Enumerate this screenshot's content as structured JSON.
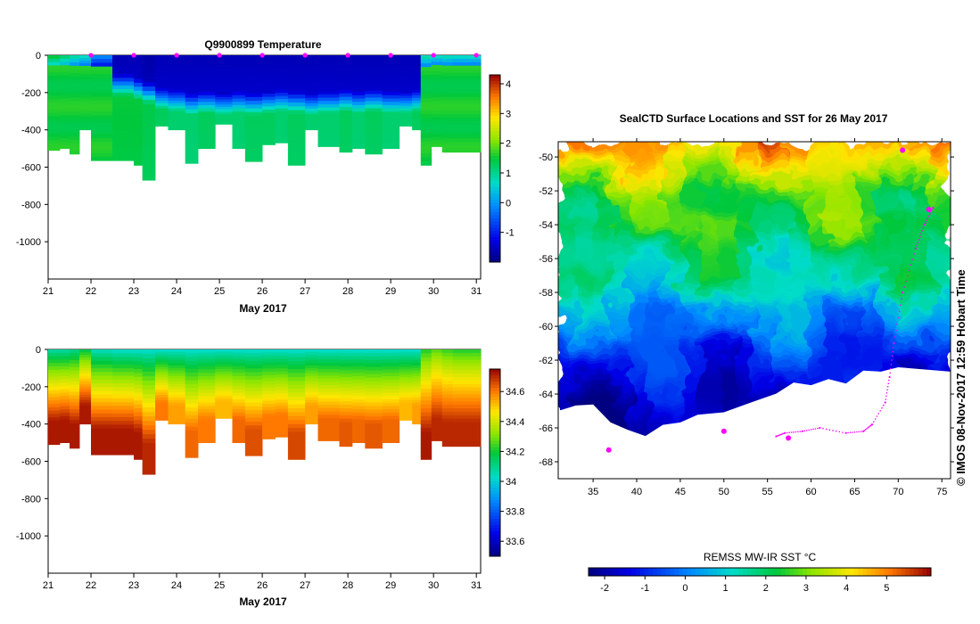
{
  "chart_data": [
    {
      "type": "heatmap",
      "id": "temperature",
      "title": "Q9900899  Temperature",
      "xlabel": "May 2017",
      "x_ticks": [
        "21",
        "22",
        "23",
        "24",
        "25",
        "26",
        "27",
        "28",
        "29",
        "30",
        "31"
      ],
      "xlim": [
        21,
        31.1
      ],
      "ylim": [
        -1200,
        0
      ],
      "y_ticks": [
        0,
        -200,
        -400,
        -600,
        -800,
        -1000
      ],
      "y_tick_labels": [
        "0",
        "-200",
        "-400",
        "-600",
        "-800",
        "-1000"
      ],
      "profile_markers_x": [
        22,
        23,
        24,
        25,
        26,
        27,
        28,
        29,
        30,
        31
      ],
      "colorbar": {
        "min": -2,
        "max": 4.3,
        "ticks": [
          -1,
          0,
          1,
          2,
          3,
          4
        ],
        "tick_labels": [
          "-1",
          "0",
          "1",
          "2",
          "3",
          "4"
        ]
      },
      "profiles": {
        "x_start": [
          21.0,
          21.27,
          21.5,
          21.73,
          22.0,
          22.5,
          23.0,
          23.2,
          23.5,
          23.8,
          24.2,
          24.5,
          24.9,
          25.3,
          25.6,
          26.0,
          26.3,
          26.6,
          27.0,
          27.3,
          27.8,
          28.1,
          28.4,
          28.8,
          29.2,
          29.5,
          29.7,
          29.95,
          30.2,
          30.45
        ],
        "x_end": [
          21.27,
          21.5,
          21.73,
          22.0,
          22.5,
          23.0,
          23.2,
          23.5,
          23.8,
          24.2,
          24.5,
          24.9,
          25.3,
          25.6,
          26.0,
          26.3,
          26.6,
          27.0,
          27.3,
          27.8,
          28.1,
          28.4,
          28.8,
          29.2,
          29.5,
          29.7,
          29.95,
          30.2,
          30.45,
          31.1
        ],
        "max_depth": [
          -510,
          -500,
          -530,
          -400,
          -565,
          -565,
          -590,
          -670,
          -380,
          -400,
          -580,
          -500,
          -370,
          -500,
          -570,
          -480,
          -470,
          -590,
          -400,
          -490,
          -520,
          -500,
          -530,
          -500,
          -380,
          -400,
          -590,
          -490,
          -520,
          -520
        ],
        "surface_value": [
          1.6,
          1.3,
          1.0,
          0.8,
          0.0,
          -1.6,
          -1.6,
          -1.7,
          -1.6,
          -1.6,
          -1.6,
          -1.6,
          -1.6,
          -1.6,
          -1.6,
          -1.6,
          -1.6,
          -1.6,
          -1.6,
          -1.6,
          -1.6,
          -1.6,
          -1.6,
          -1.6,
          -1.6,
          -1.6,
          1.0,
          0.8,
          0.9,
          0.8
        ],
        "deep_value": [
          1.5,
          1.5,
          1.5,
          1.5,
          1.5,
          1.5,
          1.5,
          1.4,
          1.3,
          1.2,
          1.2,
          1.3,
          1.2,
          1.2,
          1.3,
          1.3,
          1.2,
          1.3,
          1.2,
          1.2,
          1.3,
          1.2,
          1.3,
          1.2,
          1.2,
          1.3,
          1.5,
          1.5,
          1.5,
          1.5
        ],
        "thermocline_depth": [
          0,
          0,
          0,
          0,
          0,
          160,
          180,
          200,
          230,
          240,
          260,
          250,
          260,
          250,
          260,
          250,
          240,
          250,
          260,
          250,
          240,
          250,
          240,
          250,
          250,
          240,
          0,
          0,
          0,
          0
        ]
      }
    },
    {
      "type": "heatmap",
      "id": "salinity",
      "title": "",
      "xlabel": "May 2017",
      "x_ticks": [
        "21",
        "22",
        "23",
        "24",
        "25",
        "26",
        "27",
        "28",
        "29",
        "30",
        "31"
      ],
      "xlim": [
        21,
        31.1
      ],
      "ylim": [
        -1200,
        0
      ],
      "y_ticks": [
        0,
        -200,
        -400,
        -600,
        -800,
        -1000
      ],
      "y_tick_labels": [
        "0",
        "-200",
        "-400",
        "-600",
        "-800",
        "-1000"
      ],
      "colorbar": {
        "min": 33.5,
        "max": 34.75,
        "ticks": [
          33.6,
          33.8,
          34,
          34.2,
          34.4,
          34.6
        ],
        "tick_labels": [
          "33.6",
          "33.8",
          "34",
          "34.2",
          "34.4",
          "34.6"
        ]
      },
      "profiles": {
        "max_depth_same_as": "temperature",
        "surface_value": [
          34.05,
          34.05,
          34.08,
          34.15,
          34.02,
          34.0,
          34.0,
          34.0,
          34.0,
          34.0,
          34.0,
          34.0,
          34.0,
          34.0,
          34.0,
          34.0,
          34.0,
          34.0,
          34.0,
          34.0,
          34.0,
          34.0,
          34.0,
          34.0,
          34.0,
          34.0,
          34.2,
          34.25,
          34.22,
          34.2
        ],
        "deep_value": [
          34.72,
          34.72,
          34.72,
          34.72,
          34.72,
          34.72,
          34.72,
          34.7,
          34.6,
          34.55,
          34.62,
          34.6,
          34.52,
          34.62,
          34.65,
          34.6,
          34.6,
          34.66,
          34.55,
          34.62,
          34.64,
          34.62,
          34.64,
          34.62,
          34.52,
          34.55,
          34.72,
          34.7,
          34.7,
          34.7
        ]
      }
    },
    {
      "type": "heatmap",
      "id": "sst_map",
      "title": "SealCTD Surface Locations and SST for 26 May 2017",
      "colorbar_label": "REMSS MW-IR SST °C",
      "x_ticks": [
        "35",
        "40",
        "45",
        "50",
        "55",
        "60",
        "65",
        "70",
        "75"
      ],
      "x_tick_values": [
        35,
        40,
        45,
        50,
        55,
        60,
        65,
        70,
        75
      ],
      "xlim": [
        31,
        76
      ],
      "y_ticks": [
        "-50",
        "-52",
        "-54",
        "-56",
        "-58",
        "-60",
        "-62",
        "-64",
        "-66",
        "-68"
      ],
      "y_tick_values": [
        -50,
        -52,
        -54,
        -56,
        -58,
        -60,
        -62,
        -64,
        -66,
        -68
      ],
      "ylim": [
        -69,
        -49.1
      ],
      "colorbar": {
        "min": -2.4,
        "max": 6.1,
        "ticks": [
          -2,
          -1,
          0,
          1,
          2,
          3,
          4,
          5
        ],
        "tick_labels": [
          "-2",
          "-1",
          "0",
          "1",
          "2",
          "3",
          "4",
          "5"
        ]
      },
      "zonal_sst_profile": {
        "lat": [
          -49.1,
          -50,
          -51,
          -52,
          -53,
          -54,
          -55,
          -56,
          -57,
          -58,
          -59,
          -60,
          -61,
          -62,
          -63,
          -64,
          -65,
          -66
        ],
        "sst": [
          4.8,
          4.2,
          3.6,
          2.7,
          2.4,
          2.6,
          2.0,
          1.6,
          1.6,
          1.1,
          0.3,
          0.0,
          -0.6,
          -1.0,
          -1.3,
          -1.6,
          -1.8,
          -1.9
        ]
      },
      "coastline_lat": [
        -65.0,
        -64.6,
        -64.7,
        -65.6,
        -66.2,
        -66.4,
        -65.9,
        -65.6,
        -65.3,
        -65.0,
        -64.6,
        -63.9,
        -63.4,
        -63.4,
        -63.2,
        -63.3,
        -62.7,
        -62.6,
        -62.5,
        -62.6
      ],
      "coastline_lon": [
        31,
        33,
        35,
        37,
        39,
        41,
        43,
        45,
        47,
        50,
        53,
        56,
        58,
        60,
        62,
        64,
        66,
        68,
        70,
        76
      ],
      "seal_track": [
        [
          74,
          -53.0
        ],
        [
          73,
          -54.0
        ],
        [
          72,
          -55.4
        ],
        [
          70.5,
          -58.0
        ],
        [
          69.5,
          -61.0
        ],
        [
          69.0,
          -63.0
        ],
        [
          68.5,
          -64.5
        ],
        [
          67,
          -65.8
        ],
        [
          66,
          -66.2
        ],
        [
          64,
          -66.3
        ],
        [
          61,
          -66.0
        ],
        [
          59,
          -66.2
        ],
        [
          57,
          -66.3
        ],
        [
          56,
          -66.5
        ]
      ],
      "seal_dots": [
        [
          36.8,
          -67.3
        ],
        [
          50,
          -66.2
        ],
        [
          70.5,
          -49.6
        ],
        [
          73.5,
          -53.1
        ],
        [
          57.4,
          -66.6
        ]
      ]
    }
  ],
  "side_label": "© IMOS 08-Nov-2017 12:59 Hobart Time"
}
